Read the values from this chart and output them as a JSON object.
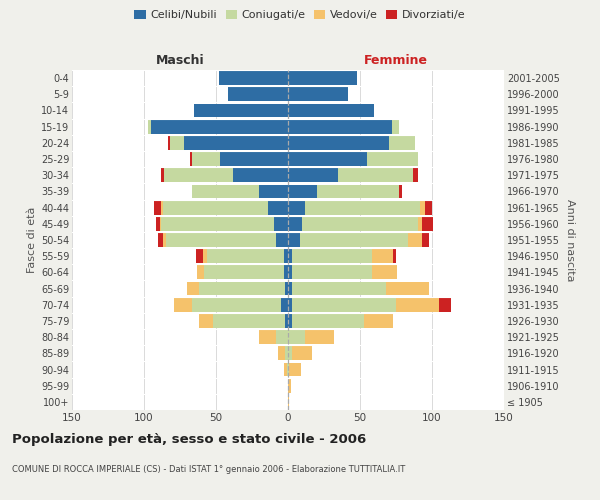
{
  "age_groups": [
    "100+",
    "95-99",
    "90-94",
    "85-89",
    "80-84",
    "75-79",
    "70-74",
    "65-69",
    "60-64",
    "55-59",
    "50-54",
    "45-49",
    "40-44",
    "35-39",
    "30-34",
    "25-29",
    "20-24",
    "15-19",
    "10-14",
    "5-9",
    "0-4"
  ],
  "birth_years": [
    "≤ 1905",
    "1906-1910",
    "1911-1915",
    "1916-1920",
    "1921-1925",
    "1926-1930",
    "1931-1935",
    "1936-1940",
    "1941-1945",
    "1946-1950",
    "1951-1955",
    "1956-1960",
    "1961-1965",
    "1966-1970",
    "1971-1975",
    "1976-1980",
    "1981-1985",
    "1986-1990",
    "1991-1995",
    "1996-2000",
    "2001-2005"
  ],
  "maschi": {
    "celibi": [
      0,
      0,
      0,
      0,
      0,
      2,
      5,
      2,
      3,
      3,
      8,
      10,
      14,
      20,
      38,
      47,
      72,
      95,
      65,
      42,
      48
    ],
    "coniugati": [
      0,
      0,
      1,
      2,
      8,
      50,
      62,
      60,
      55,
      53,
      77,
      78,
      73,
      47,
      48,
      20,
      10,
      2,
      0,
      0,
      0
    ],
    "vedovi": [
      0,
      0,
      2,
      5,
      12,
      10,
      12,
      8,
      5,
      3,
      2,
      1,
      1,
      0,
      0,
      0,
      0,
      0,
      0,
      0,
      0
    ],
    "divorziati": [
      0,
      0,
      0,
      0,
      0,
      0,
      0,
      0,
      0,
      5,
      3,
      3,
      5,
      0,
      2,
      1,
      1,
      0,
      0,
      0,
      0
    ]
  },
  "femmine": {
    "nubili": [
      0,
      0,
      0,
      0,
      0,
      3,
      3,
      3,
      3,
      3,
      8,
      10,
      12,
      20,
      35,
      55,
      70,
      72,
      60,
      42,
      48
    ],
    "coniugate": [
      0,
      0,
      1,
      3,
      12,
      50,
      72,
      65,
      55,
      55,
      75,
      80,
      80,
      57,
      52,
      35,
      18,
      5,
      0,
      0,
      0
    ],
    "vedove": [
      1,
      2,
      8,
      14,
      20,
      20,
      30,
      30,
      18,
      15,
      10,
      3,
      3,
      0,
      0,
      0,
      0,
      0,
      0,
      0,
      0
    ],
    "divorziate": [
      0,
      0,
      0,
      0,
      0,
      0,
      8,
      0,
      0,
      2,
      5,
      8,
      5,
      2,
      3,
      0,
      0,
      0,
      0,
      0,
      0
    ]
  },
  "colors": {
    "celibi": "#2e6da4",
    "coniugati": "#c5d9a0",
    "vedovi": "#f5c26b",
    "divorziati": "#cc2222"
  },
  "xlim": 150,
  "title": "Popolazione per età, sesso e stato civile - 2006",
  "subtitle": "COMUNE DI ROCCA IMPERIALE (CS) - Dati ISTAT 1° gennaio 2006 - Elaborazione TUTTITALIA.IT",
  "ylabel_left": "Fasce di età",
  "ylabel_right": "Anni di nascita",
  "xlabel_left": "Maschi",
  "xlabel_right": "Femmine",
  "bg_color": "#f0f0eb",
  "plot_bg_color": "#ffffff"
}
